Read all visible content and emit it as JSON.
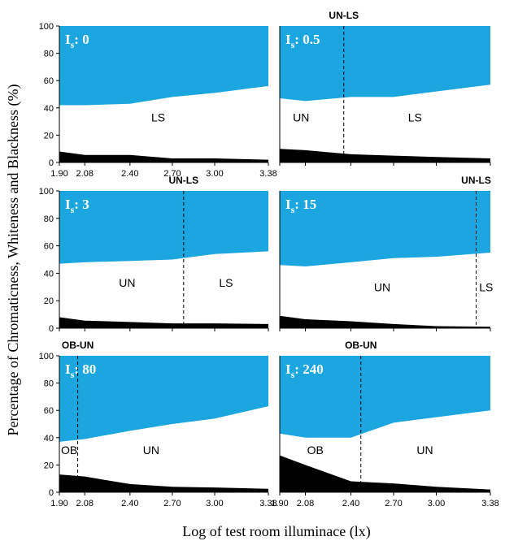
{
  "figure": {
    "ylabel": "Percentage of Chromaticness, Whiteness and Blackness (%)",
    "xlabel": "Log of test room illuminace (lx)",
    "colors": {
      "chromaticness": "#1ba6e0",
      "whiteness": "#ffffff",
      "blackness": "#000000"
    }
  },
  "chart_data": [
    {
      "type": "area",
      "label_prefix": "I",
      "label_subscript": "s",
      "label_value": ": 0",
      "x": [
        "1.90",
        "2.08",
        "2.40",
        "2.70",
        "3.00",
        "3.38"
      ],
      "xticks": [
        "1.90",
        "2.08",
        "2.40",
        "2.70",
        "3.00",
        "3.38"
      ],
      "yticks": [
        "0",
        "20",
        "40",
        "60",
        "80",
        "100"
      ],
      "ylim": [
        0,
        100
      ],
      "blackness": [
        8,
        5.5,
        5.5,
        3,
        3,
        2
      ],
      "top_of_whiteness": [
        42,
        42,
        43,
        48,
        51,
        56
      ],
      "divider": null,
      "divider_label": "",
      "regions": [
        {
          "label": "LS",
          "x": 2.6,
          "y": 33
        }
      ]
    },
    {
      "type": "area",
      "label_prefix": "I",
      "label_subscript": "s",
      "label_value": ": 0.5",
      "x": [
        "1.90",
        "2.08",
        "2.40",
        "2.70",
        "3.00",
        "3.38"
      ],
      "xticks": [],
      "yticks": [],
      "ylim": [
        0,
        100
      ],
      "blackness": [
        10,
        9,
        6,
        5,
        4,
        3
      ],
      "top_of_whiteness": [
        47,
        45,
        48,
        48,
        52,
        57
      ],
      "divider": 2.35,
      "divider_label": "UN-LS",
      "regions": [
        {
          "label": "UN",
          "x": 2.05,
          "y": 33
        },
        {
          "label": "LS",
          "x": 2.85,
          "y": 33
        }
      ]
    },
    {
      "type": "area",
      "label_prefix": "I",
      "label_subscript": "s",
      "label_value": ": 3",
      "x": [
        "1.90",
        "2.08",
        "2.40",
        "2.70",
        "3.00",
        "3.38"
      ],
      "xticks": [],
      "yticks": [
        "0",
        "20",
        "40",
        "60",
        "80",
        "100"
      ],
      "ylim": [
        0,
        100
      ],
      "blackness": [
        8,
        5.5,
        4.5,
        3.5,
        3.5,
        3
      ],
      "top_of_whiteness": [
        47,
        48,
        49,
        50,
        54,
        56
      ],
      "divider": 2.78,
      "divider_label": "UN-LS",
      "regions": [
        {
          "label": "UN",
          "x": 2.38,
          "y": 33
        },
        {
          "label": "LS",
          "x": 3.08,
          "y": 33
        }
      ]
    },
    {
      "type": "area",
      "label_prefix": "I",
      "label_subscript": "s",
      "label_value": ": 15",
      "x": [
        "1.90",
        "2.08",
        "2.40",
        "2.70",
        "3.00",
        "3.38"
      ],
      "xticks": [],
      "yticks": [],
      "ylim": [
        0,
        100
      ],
      "blackness": [
        9,
        6.5,
        5,
        3,
        1.5,
        1
      ],
      "top_of_whiteness": [
        46,
        45,
        48,
        51,
        52,
        55
      ],
      "divider": 3.28,
      "divider_label": "UN-LS",
      "regions": [
        {
          "label": "UN",
          "x": 2.62,
          "y": 30
        },
        {
          "label": "LS",
          "x": 3.35,
          "y": 30
        }
      ]
    },
    {
      "type": "area",
      "label_prefix": "I",
      "label_subscript": "s",
      "label_value": ": 80",
      "x": [
        "1.90",
        "2.08",
        "2.40",
        "2.70",
        "3.00",
        "3.38"
      ],
      "xticks": [
        "1.90",
        "2.08",
        "2.40",
        "2.70",
        "3.00",
        "3.38"
      ],
      "yticks": [
        "0",
        "20",
        "40",
        "60",
        "80",
        "100"
      ],
      "ylim": [
        0,
        100
      ],
      "blackness": [
        13,
        11.5,
        6,
        4,
        3.5,
        2.5
      ],
      "top_of_whiteness": [
        37,
        39,
        45,
        50,
        54,
        63
      ],
      "divider": 2.03,
      "divider_label": "OB-UN",
      "regions": [
        {
          "label": "OB",
          "x": 1.97,
          "y": 31
        },
        {
          "label": "UN",
          "x": 2.55,
          "y": 31
        }
      ]
    },
    {
      "type": "area",
      "label_prefix": "I",
      "label_subscript": "s",
      "label_value": ": 240",
      "x": [
        "1.90",
        "2.08",
        "2.40",
        "2.70",
        "3.00",
        "3.38"
      ],
      "xticks": [
        "1.90",
        "2.08",
        "2.40",
        "2.70",
        "3.00",
        "3.38"
      ],
      "yticks": [],
      "ylim": [
        0,
        100
      ],
      "blackness": [
        27,
        20,
        8,
        6.5,
        4,
        2
      ],
      "top_of_whiteness": [
        43,
        40,
        40,
        51,
        55,
        60
      ],
      "divider": 2.47,
      "divider_label": "OB-UN",
      "regions": [
        {
          "label": "OB",
          "x": 2.15,
          "y": 31
        },
        {
          "label": "UN",
          "x": 2.92,
          "y": 31
        }
      ]
    }
  ]
}
